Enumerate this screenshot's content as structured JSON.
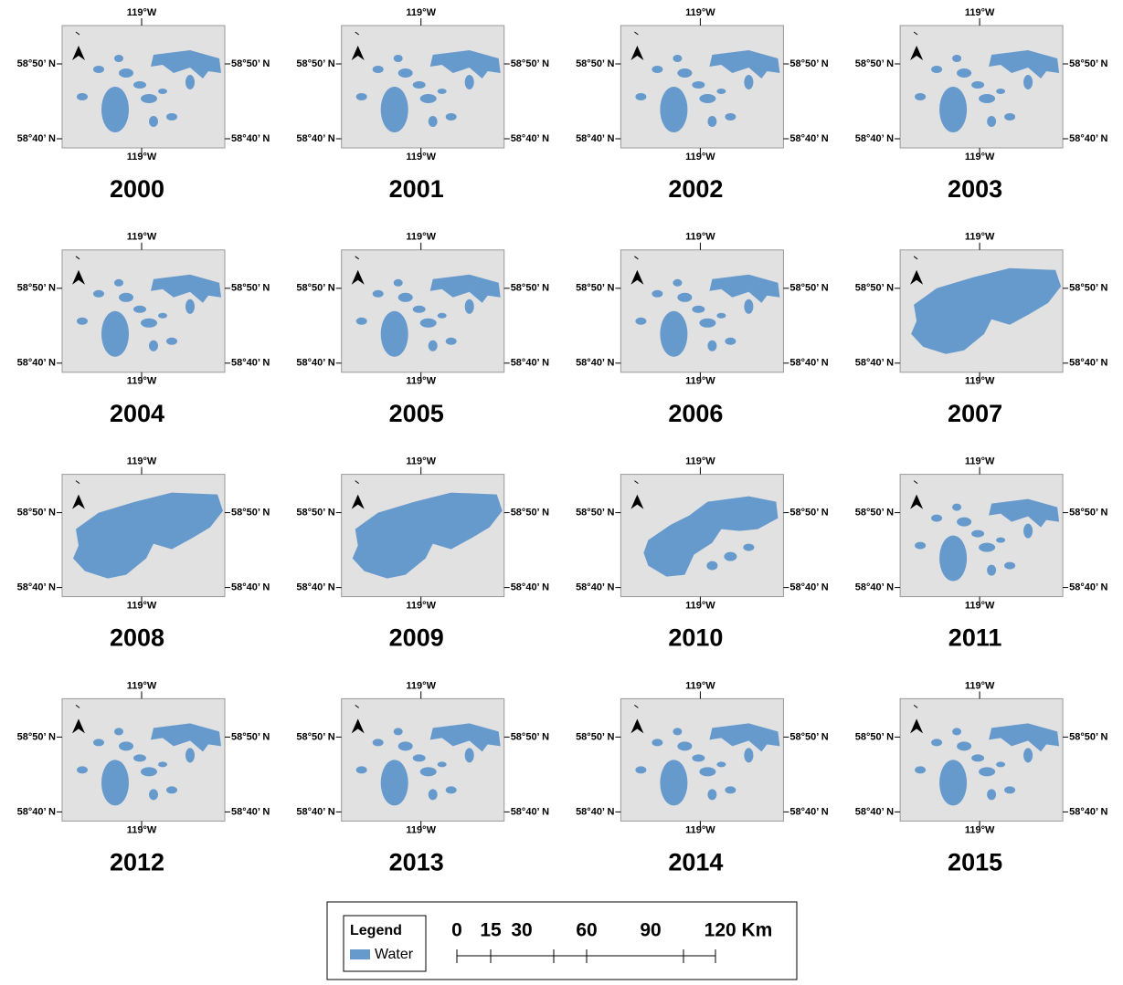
{
  "panels": [
    {
      "year": "2000"
    },
    {
      "year": "2001"
    },
    {
      "year": "2002"
    },
    {
      "year": "2003"
    },
    {
      "year": "2004"
    },
    {
      "year": "2005"
    },
    {
      "year": "2006"
    },
    {
      "year": "2007"
    },
    {
      "year": "2008"
    },
    {
      "year": "2009"
    },
    {
      "year": "2010"
    },
    {
      "year": "2011"
    },
    {
      "year": "2012"
    },
    {
      "year": "2013"
    },
    {
      "year": "2014"
    },
    {
      "year": "2015"
    }
  ],
  "coordinate_labels": {
    "longitude": "119°W",
    "lat_north": "58°50’ N",
    "lat_south": "58°40’ N"
  },
  "legend": {
    "title": "Legend",
    "items": [
      "Water"
    ]
  },
  "scale_bar": {
    "labels": [
      "0",
      "15",
      "30",
      "60",
      "90",
      "120 Km"
    ]
  }
}
